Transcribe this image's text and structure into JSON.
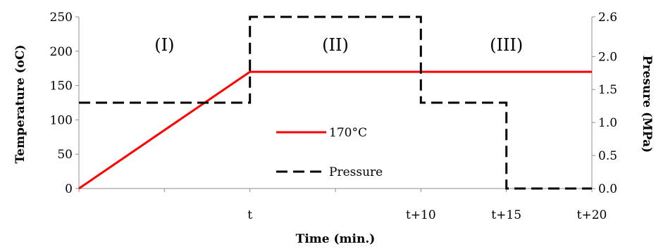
{
  "chart_data": {
    "type": "line",
    "xlabel": "Time (min.)",
    "ylabel": "Temperature (oC)",
    "y2label": "Presure (MPa)",
    "x_ticks": [
      "t",
      "t+10",
      "t+15",
      "t+20"
    ],
    "y_ticks": [
      "0",
      "50",
      "100",
      "150",
      "200",
      "250"
    ],
    "y2_ticks": [
      "0.0",
      "0.5",
      "1.0",
      "1.5",
      "2.0",
      "2.6"
    ],
    "ylim": [
      0,
      250
    ],
    "y2lim": [
      0,
      2.6
    ],
    "xlim": [
      -10,
      20
    ],
    "grid": false,
    "regions": [
      {
        "label": "(I)",
        "x": -5
      },
      {
        "label": "(II)",
        "x": 5
      },
      {
        "label": "(III)",
        "x": 15
      }
    ],
    "series": [
      {
        "name": "170°C",
        "axis": "left",
        "color": "#ff0000",
        "style": "solid",
        "x": [
          -10,
          0,
          20
        ],
        "y": [
          0,
          170,
          170
        ]
      },
      {
        "name": "Pressure",
        "axis": "right",
        "color": "#000000",
        "style": "dashed",
        "x": [
          -10,
          0,
          0,
          10,
          10,
          15,
          15,
          20
        ],
        "y": [
          1.3,
          1.3,
          2.6,
          2.6,
          1.3,
          1.3,
          0.0,
          0.0
        ]
      }
    ],
    "legend": {
      "placement": "center"
    }
  }
}
